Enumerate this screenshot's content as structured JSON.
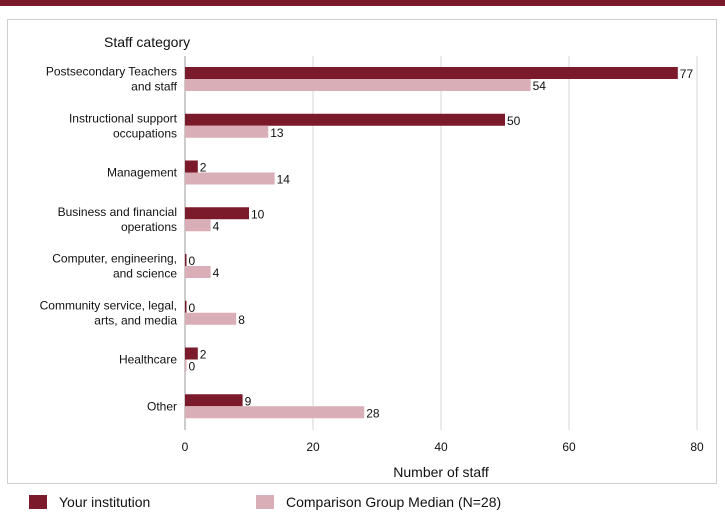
{
  "chart_data": {
    "type": "bar",
    "orientation": "horizontal",
    "category_axis_title": "Staff category",
    "xlabel": "Number of staff",
    "xlim": [
      0,
      80
    ],
    "xticks": [
      0,
      20,
      40,
      60,
      80
    ],
    "grid": true,
    "legend_position": "bottom",
    "categories": [
      [
        "Postsecondary Teachers",
        "and staff"
      ],
      [
        "Instructional support",
        "occupations"
      ],
      [
        "Management"
      ],
      [
        "Business and financial",
        "operations"
      ],
      [
        "Computer, engineering,",
        "and science"
      ],
      [
        "Community service, legal,",
        "arts, and media"
      ],
      [
        "Healthcare"
      ],
      [
        "Other"
      ]
    ],
    "series": [
      {
        "name": "Your institution",
        "color": "#7b1a2b",
        "values": [
          77,
          50,
          2,
          10,
          0,
          0,
          2,
          9
        ]
      },
      {
        "name": "Comparison Group Median (N=28)",
        "color": "#d9aeb6",
        "values": [
          54,
          13,
          14,
          4,
          4,
          8,
          0,
          28
        ]
      }
    ]
  }
}
